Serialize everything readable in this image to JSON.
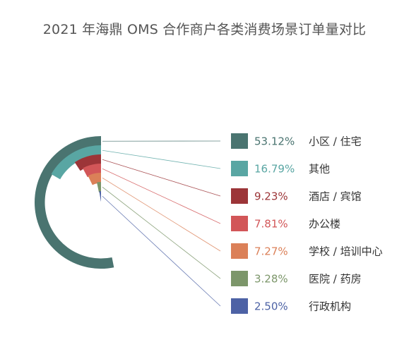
{
  "chart_data": {
    "type": "radial-bar",
    "title": "2021 年海鼎 OMS 合作商户各类消费场景订单量对比",
    "series": [
      {
        "label": "小区 / 住宅",
        "value": 53.12,
        "display": "53.12%",
        "color": "#4a7470"
      },
      {
        "label": "其他",
        "value": 16.79,
        "display": "16.79%",
        "color": "#59a6a3"
      },
      {
        "label": "酒店 / 宾馆",
        "value": 9.23,
        "display": "9.23%",
        "color": "#9c3538"
      },
      {
        "label": "办公楼",
        "value": 7.81,
        "display": "7.81%",
        "color": "#d25658"
      },
      {
        "label": "学校 / 培训中心",
        "value": 7.27,
        "display": "7.27%",
        "color": "#db8058"
      },
      {
        "label": "医院 / 药房",
        "value": 3.28,
        "display": "3.28%",
        "color": "#7c966a"
      },
      {
        "label": "行政机构",
        "value": 2.5,
        "display": "2.50%",
        "color": "#4d62a5"
      }
    ],
    "max": 100,
    "start_angle": "top",
    "direction": "counter-clockwise",
    "legend_position": "right"
  }
}
